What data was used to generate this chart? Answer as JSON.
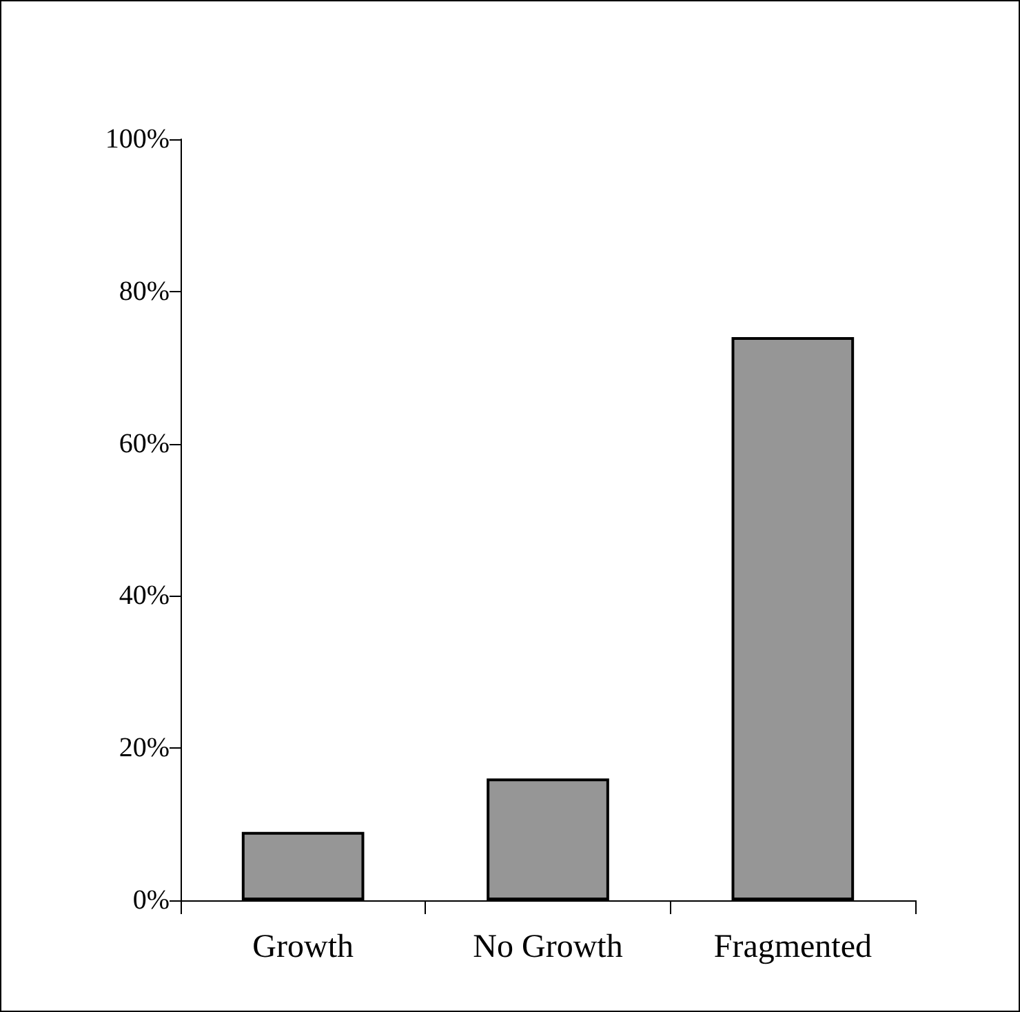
{
  "chart_data": {
    "type": "bar",
    "categories": [
      "Growth",
      "No Growth",
      "Fragmented"
    ],
    "values": [
      9,
      16,
      74
    ],
    "color": "#969696",
    "ylim": [
      0,
      100
    ],
    "yticks": [
      {
        "value": 0,
        "label": "0%"
      },
      {
        "value": 20,
        "label": "20%"
      },
      {
        "value": 40,
        "label": "40%"
      },
      {
        "value": 60,
        "label": "60%"
      },
      {
        "value": 80,
        "label": "80%"
      },
      {
        "value": 100,
        "label": "100%"
      }
    ],
    "grid": false
  }
}
